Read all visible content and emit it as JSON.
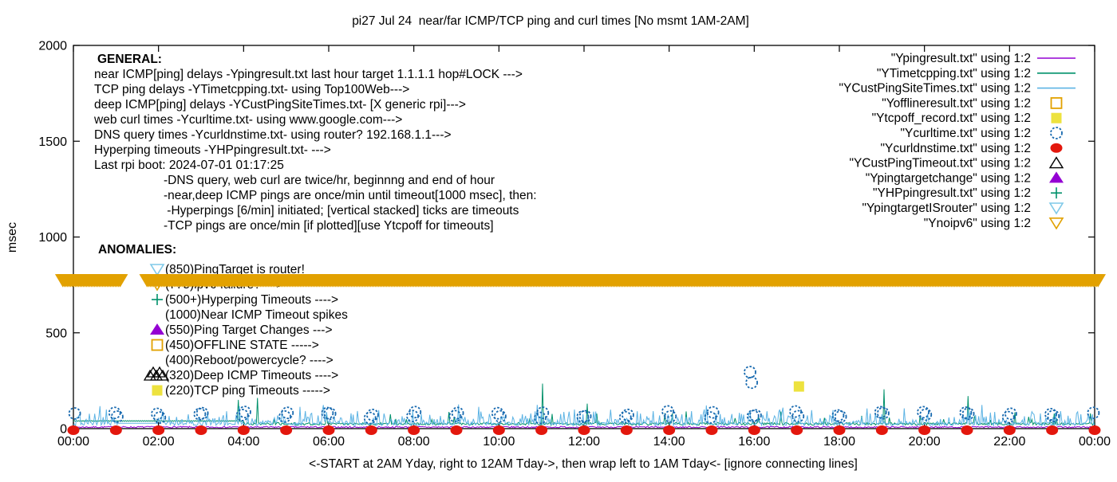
{
  "title": "pi27 Jul 24  near/far ICMP/TCP ping and curl times [No msmt 1AM-2AM]",
  "axes": {
    "ylabel": "msec",
    "xlabel": "<-START at 2AM Yday, right to 12AM Tday->, then wrap left to 1AM Tday<- [ignore connecting lines]",
    "yticks": [
      "0",
      "500",
      "1000",
      "1500",
      "2000"
    ],
    "ytick_values": [
      0,
      500,
      1000,
      1500,
      2000
    ],
    "xticks": [
      "00:00",
      "02:00",
      "04:00",
      "06:00",
      "08:00",
      "10:00",
      "12:00",
      "14:00",
      "16:00",
      "18:00",
      "20:00",
      "22:00",
      "00:00"
    ],
    "xtick_hours": [
      0,
      2,
      4,
      6,
      8,
      10,
      12,
      14,
      16,
      18,
      20,
      22,
      24
    ]
  },
  "colors": {
    "purple": "#9400D3",
    "teal": "#00916A",
    "lightblue": "#5CB3E4",
    "gold": "#E2A100",
    "yellow": "#EDE23E",
    "blue": "#1769AF",
    "red": "#E3170D",
    "black": "#000000"
  },
  "legend": [
    {
      "label": "\"Ypingresult.txt\" using 1:2",
      "marker": "line",
      "color": "#9400D3"
    },
    {
      "label": "\"YTimetcpping.txt\" using 1:2",
      "marker": "line",
      "color": "#00916A"
    },
    {
      "label": "\"YCustPingSiteTimes.txt\" using 1:2",
      "marker": "line",
      "color": "#5CB3E4"
    },
    {
      "label": "\"Yofflineresult.txt\" using 1:2",
      "marker": "sq-open",
      "color": "#E2A100"
    },
    {
      "label": "\"Ytcpoff_record.txt\" using 1:2",
      "marker": "sq-filled",
      "color": "#EDE23E"
    },
    {
      "label": "\"Ycurltime.txt\" using 1:2",
      "marker": "circ-open",
      "color": "#1769AF"
    },
    {
      "label": "\"Ycurldnstime.txt\" using 1:2",
      "marker": "circ-filled",
      "color": "#E3170D"
    },
    {
      "label": "\"YCustPingTimeout.txt\" using 1:2",
      "marker": "tri-up-open",
      "color": "#000000"
    },
    {
      "label": "\"Ypingtargetchange\" using 1:2",
      "marker": "tri-up-filled",
      "color": "#9400D3"
    },
    {
      "label": "\"YHPpingresult.txt\" using 1:2",
      "marker": "plus",
      "color": "#00916A"
    },
    {
      "label": "\"YpingtargetISrouter\" using 1:2",
      "marker": "tri-down-open",
      "color": "#7FC9E8"
    },
    {
      "label": "\"Ynoipv6\" using 1:2",
      "marker": "tri-down-open",
      "color": "#E2A100"
    }
  ],
  "annotations": {
    "general_header": "GENERAL:",
    "general_lines": [
      "near ICMP[ping] delays -Ypingresult.txt last hour target 1.1.1.1 hop#LOCK --->",
      "TCP ping delays -YTimetcpping.txt- using Top100Web--->",
      "deep ICMP[ping] delays -YCustPingSiteTimes.txt- [X generic rpi]--->",
      "web curl times -Ycurltime.txt- using www.google.com--->",
      "DNS query times -Ycurldnstime.txt- using router? 192.168.1.1--->",
      "Hyperping timeouts -YHPpingresult.txt- --->",
      "Last rpi boot: 2024-07-01 01:17:25"
    ],
    "general_indent_lines": [
      "-DNS query, web curl are twice/hr, beginnng and end of hour",
      "-near,deep ICMP pings are once/min until timeout[1000 msec], then:",
      " -Hyperpings [6/min] initiated; [vertical stacked] ticks are timeouts",
      "-TCP pings are once/min [if plotted][use Ytcpoff for timeouts]"
    ],
    "anomalies_header": "ANOMALIES:",
    "anomalies": [
      {
        "marker": "tri-down-open",
        "color": "#7FC9E8",
        "text": "(850)PingTarget is router!"
      },
      {
        "marker": "tri-down-open",
        "color": "#E2A100",
        "text": "(775)ipv6 failure? --->"
      },
      {
        "marker": "plus",
        "color": "#00916A",
        "text": "(500+)Hyperping Timeouts ---->"
      },
      {
        "marker": "none",
        "color": "",
        "text": "(1000)Near ICMP Timeout spikes"
      },
      {
        "marker": "tri-up-filled",
        "color": "#9400D3",
        "text": "(550)Ping Target Changes --->"
      },
      {
        "marker": "sq-open",
        "color": "#E2A100",
        "text": "(450)OFFLINE STATE ----->"
      },
      {
        "marker": "none",
        "color": "",
        "text": "(400)Reboot/powercycle? ---->"
      },
      {
        "marker": "tri-cluster",
        "color": "#000000",
        "text": "(320)Deep ICMP Timeouts ---->"
      },
      {
        "marker": "sq-filled",
        "color": "#EDE23E",
        "text": "(220)TCP ping Timeouts ----->"
      }
    ]
  },
  "chart_data": {
    "type": "line",
    "title": "pi27 Jul 24  near/far ICMP/TCP ping and curl times [No msmt 1AM-2AM]",
    "xlabel": "<-START at 2AM Yday, right to 12AM Tday->, then wrap left to 1AM Tday<- [ignore connecting lines]",
    "ylabel": "msec",
    "xlim_hours": [
      0,
      24
    ],
    "ylim": [
      0,
      2000
    ],
    "grid": false,
    "legend_position": "top-right-inside",
    "series": [
      {
        "name": "near_icmp_ping",
        "file": "Ypingresult.txt",
        "style": "line",
        "color": "#9400D3",
        "baseline_msec": [
          4,
          12
        ],
        "note": "flat near 0 all day"
      },
      {
        "name": "tcp_ping",
        "file": "YTimetcpping.txt",
        "style": "line",
        "color": "#00916A",
        "baseline_msec": [
          18,
          32
        ],
        "flat_segment": {
          "hours": [
            0.0,
            4.0
          ],
          "msec": 40
        },
        "spikes_hour_msec": [
          [
            3.88,
            150
          ],
          [
            4.33,
            160
          ],
          [
            11.02,
            235
          ],
          [
            12.08,
            130
          ],
          [
            14.4,
            90
          ],
          [
            19.05,
            205
          ],
          [
            21.02,
            170
          ]
        ]
      },
      {
        "name": "deep_icmp_ping",
        "file": "YCustPingSiteTimes.txt",
        "style": "line",
        "color": "#5CB3E4",
        "baseline_msec": [
          16,
          30
        ],
        "spike_range_msec": [
          30,
          135
        ],
        "quiet_hours": [
          1.05,
          1.95
        ]
      },
      {
        "name": "web_curl",
        "file": "Ycurltime.txt",
        "style": "open-circle",
        "color": "#1769AF",
        "schedule": "twice per hour (begin and end)",
        "msec_range": [
          55,
          90
        ],
        "outliers_hour_msec": [
          [
            15.9,
            295
          ],
          [
            15.94,
            240
          ]
        ]
      },
      {
        "name": "dns_query",
        "file": "Ycurldnstime.txt",
        "style": "filled-circle",
        "color": "#E3170D",
        "schedule": "hourly on the hour",
        "msec": 0,
        "points_hours": [
          0,
          1,
          2,
          3,
          4,
          5,
          6,
          7,
          8,
          9,
          10,
          11,
          12,
          13,
          14,
          15,
          16,
          17,
          18,
          19,
          20,
          21,
          22,
          23,
          24
        ]
      },
      {
        "name": "tcp_ping_timeout_events",
        "file": "Ytcpoff_record.txt",
        "style": "filled-square",
        "color": "#EDE23E",
        "marker_msec": 220,
        "events_hour_msec": [
          [
            17.05,
            220
          ]
        ]
      },
      {
        "name": "no_ipv6",
        "file": "Ynoipv6",
        "style": "open-down-triangle-band",
        "color": "#E2A100",
        "marker_msec": 775,
        "segments_hours": [
          [
            -0.25,
            1.12
          ],
          [
            1.73,
            24.1
          ]
        ],
        "note": "dense stacked markers form solid band; gap = no msmt 1AM-2AM"
      }
    ]
  }
}
